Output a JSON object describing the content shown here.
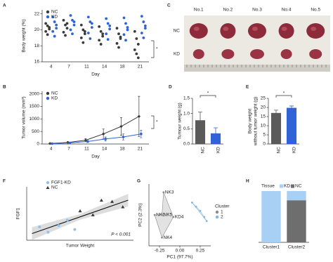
{
  "chart_data": [
    {
      "label": "A",
      "type": "strip",
      "ylabel": "Body weight (%)",
      "xlabel": "Day",
      "annotation": "*",
      "categories": [
        "4",
        "7",
        "11",
        "14",
        "18",
        "21"
      ],
      "series": [
        {
          "name": "NC",
          "color": "#3a3a3a",
          "values": [
            [
              20.8,
              20.5,
              20.1,
              19.8,
              19.4,
              20.3
            ],
            [
              21.2,
              20.6,
              20.2,
              19.7,
              19.3,
              20.8
            ],
            [
              20.6,
              20.0,
              19.5,
              19.0,
              18.4,
              19.8
            ],
            [
              20.4,
              19.8,
              19.2,
              18.7,
              18.2,
              19.5
            ],
            [
              20.2,
              19.5,
              18.9,
              18.3,
              17.8,
              19.1
            ],
            [
              19.8,
              18.9,
              18.2,
              17.5,
              17.0,
              16.5
            ]
          ]
        },
        {
          "name": "KD",
          "color": "#2f63d6",
          "values": [
            [
              21.6,
              21.0,
              20.2,
              19.8,
              19.2,
              20.6
            ],
            [
              21.8,
              21.2,
              20.6,
              20.0,
              19.5,
              21.0
            ],
            [
              21.6,
              21.0,
              20.3,
              19.6,
              18.9,
              20.8
            ],
            [
              21.4,
              20.8,
              20.1,
              19.5,
              18.8,
              20.5
            ],
            [
              21.5,
              20.8,
              20.0,
              19.4,
              18.7,
              20.3
            ],
            [
              21.7,
              21.0,
              20.2,
              19.6,
              19.0,
              20.5
            ]
          ]
        }
      ],
      "ylim": [
        16,
        22.5
      ],
      "yticks": [
        16,
        18,
        20,
        22
      ]
    },
    {
      "label": "B",
      "type": "line",
      "ylabel": "Tumor volume (mm³)",
      "xlabel": "Day",
      "annotation": "*",
      "categories": [
        "4",
        "7",
        "11",
        "14",
        "18",
        "21"
      ],
      "series": [
        {
          "name": "NC",
          "color": "#3a3a3a",
          "values": [
            20,
            60,
            150,
            400,
            700,
            1100
          ],
          "errors": [
            10,
            30,
            60,
            200,
            350,
            800
          ]
        },
        {
          "name": "KD",
          "color": "#2f63d6",
          "values": [
            15,
            45,
            100,
            200,
            280,
            400
          ],
          "errors": [
            8,
            20,
            40,
            80,
            120,
            150
          ]
        }
      ],
      "ylim": [
        0,
        2100
      ],
      "yticks": [
        0,
        500,
        1000,
        1500,
        2000
      ]
    },
    {
      "label": "C",
      "type": "photo",
      "columns": [
        "No.1",
        "No.2",
        "No.3",
        "No.4",
        "No.5"
      ],
      "rows": [
        "NC",
        "KD"
      ]
    },
    {
      "label": "D",
      "type": "bar",
      "ylabel": [
        "Tumour weight (g)"
      ],
      "annotation": "*",
      "categories": [
        "NC",
        "KD"
      ],
      "values": [
        0.78,
        0.35
      ],
      "errors": [
        0.27,
        0.18
      ],
      "colors": [
        "#5a5a5a",
        "#2f63d6"
      ],
      "ylim": [
        0,
        1.5
      ],
      "yticks": [
        {
          "value": 0,
          "label": "0.0"
        },
        {
          "value": 0.5,
          "label": "0.5"
        },
        {
          "value": 1,
          "label": "1.0"
        },
        {
          "value": 1.5,
          "label": "1.5"
        }
      ]
    },
    {
      "label": "E",
      "type": "bar",
      "ylabel": [
        "Body weight",
        "without tumor weight (g)"
      ],
      "annotation": "*",
      "categories": [
        "NC",
        "KD"
      ],
      "values": [
        17,
        19.8
      ],
      "errors": [
        1.5,
        1.0
      ],
      "colors": [
        "#5a5a5a",
        "#2f63d6"
      ],
      "ylim": [
        0,
        25
      ],
      "yticks": [
        0,
        5,
        10,
        15,
        20,
        25
      ]
    },
    {
      "label": "F",
      "type": "scatter",
      "xlabel": "Tumor Weight",
      "ylabel": "FGF1",
      "annotation": "P < 0.001",
      "series": [
        {
          "name": "FGF1-KD",
          "color": "#8fc3ee",
          "marker": "circle",
          "x": [
            0.12,
            0.2,
            0.3,
            0.38,
            0.45
          ],
          "y": [
            -1.0,
            -1.4,
            -0.9,
            -0.5,
            -1.2
          ]
        },
        {
          "name": "NC",
          "color": "#3a3a3a",
          "marker": "triangle",
          "x": [
            0.5,
            0.62,
            0.7,
            0.8,
            0.9
          ],
          "y": [
            0.2,
            -0.1,
            1.0,
            0.9,
            0.5
          ]
        }
      ],
      "trend": {
        "x": [
          0.05,
          0.95
        ],
        "y": [
          -1.5,
          1.0
        ]
      },
      "xlim": [
        0,
        1
      ],
      "ylim": [
        -2,
        2
      ]
    },
    {
      "label": "G",
      "type": "scatter",
      "xlabel": "PC1 (97.7%)",
      "ylabel": "PC2 (2.3%)",
      "legend_title": "Cluster",
      "series": [
        {
          "name": "1",
          "color": "#8a8a8a",
          "hull": true,
          "x": [
            -0.2,
            -0.31,
            -0.22,
            -0.22,
            -0.08
          ],
          "y": [
            0.22,
            0.0,
            0.0,
            -0.22,
            -0.02
          ],
          "labels": [
            "NK3",
            "NK1",
            "NK5",
            "NK4",
            "KD4"
          ]
        },
        {
          "name": "2",
          "color": "#7fb6e8",
          "hull": true,
          "x": [
            0.15,
            0.2,
            0.25,
            0.3,
            0.33
          ],
          "y": [
            0.12,
            0.08,
            0.04,
            -0.02,
            -0.06
          ]
        }
      ],
      "xlim": [
        -0.38,
        0.38
      ],
      "ylim": [
        -0.3,
        0.3
      ],
      "xticks": [
        {
          "value": -0.25,
          "label": "-0.25"
        },
        {
          "value": 0,
          "label": "0.00"
        },
        {
          "value": 0.25,
          "label": "0.25"
        }
      ]
    },
    {
      "label": "H",
      "type": "stacked",
      "legend_title": "Tissue",
      "categories": [
        "Cluster1",
        "Cluster2"
      ],
      "series": [
        {
          "name": "NC",
          "color": "#6e6e6e",
          "values": [
            0,
            0.82
          ]
        },
        {
          "name": "KD",
          "color": "#a8d0f5",
          "values": [
            1.0,
            0.18
          ]
        }
      ],
      "ylim": [
        0,
        1
      ]
    }
  ]
}
